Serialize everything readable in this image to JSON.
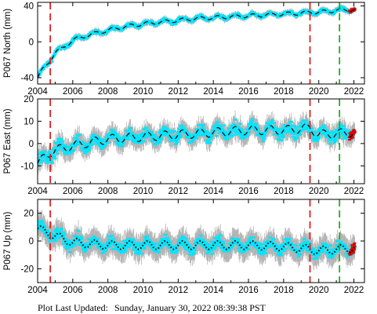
{
  "footer": {
    "label": "Plot Last Updated:",
    "timestamp": "Sunday, January 30, 2022 08:39:38 PST"
  },
  "colors": {
    "errorbar": "#b4b4b4",
    "data": "#00e5ff",
    "model": "#000000",
    "recent": "#e00000",
    "event_red": "#e02020",
    "event_green": "#20b020"
  },
  "chart_data": [
    {
      "type": "scatter",
      "ylabel": "P067 North (mm)",
      "xlim": [
        2004,
        2022.6
      ],
      "ylim": [
        -47,
        44
      ],
      "yticks": [
        -40,
        0,
        40
      ],
      "xticks": [
        2004,
        2006,
        2008,
        2010,
        2012,
        2014,
        2016,
        2018,
        2020,
        2022
      ],
      "grid": true,
      "model_style": "dashed",
      "events_red": [
        2004.72,
        2019.5
      ],
      "events_green": [
        2021.18
      ],
      "trend": {
        "x": [
          2004.0,
          2004.25,
          2004.5,
          2004.72,
          2005.0,
          2005.5,
          2006.0,
          2007.0,
          2008.0,
          2009.0,
          2010.0,
          2011.0,
          2012.0,
          2013.0,
          2014.0,
          2015.0,
          2016.0,
          2017.0,
          2018.0,
          2019.0,
          2019.5,
          2020.0,
          2021.0,
          2022.0
        ],
        "y": [
          -40,
          -32,
          -26,
          -20,
          -12,
          -6,
          2,
          8,
          13,
          17,
          20,
          22,
          24,
          26,
          27,
          28,
          29,
          30,
          31,
          32,
          33,
          33,
          35,
          36
        ]
      },
      "seasonal_amplitude": 2,
      "scatter_sd": 1.5,
      "error_half": 3
    },
    {
      "type": "scatter",
      "ylabel": "P067 East (mm)",
      "xlim": [
        2004,
        2022.6
      ],
      "ylim": [
        -18,
        20
      ],
      "yticks": [
        -10,
        0,
        10,
        20
      ],
      "xticks": [
        2004,
        2006,
        2008,
        2010,
        2012,
        2014,
        2016,
        2018,
        2020,
        2022
      ],
      "grid": true,
      "model_style": "dashed",
      "events_red": [
        2004.72,
        2019.5
      ],
      "events_green": [
        2021.18
      ],
      "trend": {
        "x": [
          2004.0,
          2004.72,
          2005.0,
          2006.0,
          2008.0,
          2010.0,
          2012.0,
          2014.0,
          2016.0,
          2018.0,
          2019.5,
          2020.0,
          2022.0
        ],
        "y": [
          -9,
          -4,
          -3,
          -1,
          2,
          3,
          4,
          5,
          6,
          6,
          7,
          4,
          5
        ]
      },
      "seasonal_amplitude": 2,
      "scatter_sd": 2,
      "error_half": 4
    },
    {
      "type": "scatter",
      "ylabel": "P067 Up (mm)",
      "xlim": [
        2004,
        2022.6
      ],
      "ylim": [
        -30,
        30
      ],
      "yticks": [
        -20,
        0,
        20
      ],
      "xticks": [
        2004,
        2006,
        2008,
        2010,
        2012,
        2014,
        2016,
        2018,
        2020,
        2022
      ],
      "grid": true,
      "model_style": "dotted",
      "events_red": [
        2004.72,
        2019.5
      ],
      "events_green": [
        2021.18
      ],
      "trend": {
        "x": [
          2004.0,
          2004.72,
          2006.0,
          2008.0,
          2010.0,
          2012.0,
          2014.0,
          2016.0,
          2018.0,
          2019.5,
          2020.0,
          2022.0
        ],
        "y": [
          9,
          5,
          -1,
          -3,
          -3,
          -3,
          -3,
          -3,
          -4,
          -6,
          -7,
          -5
        ]
      },
      "seasonal_amplitude": 3,
      "scatter_sd": 3,
      "error_half": 8
    }
  ]
}
